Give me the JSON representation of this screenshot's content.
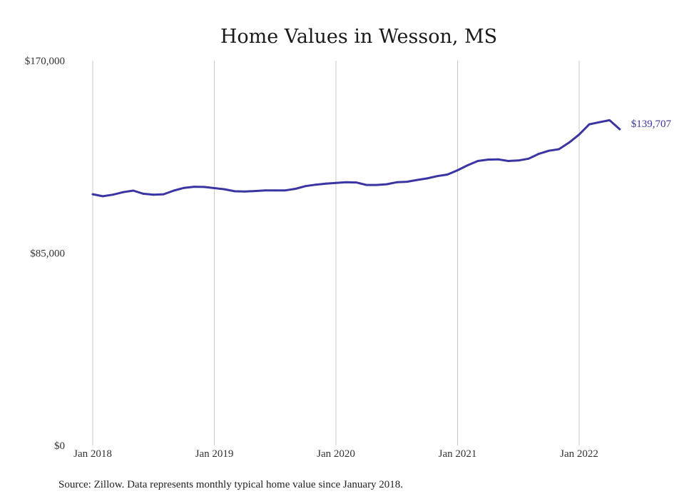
{
  "chart_data": {
    "type": "line",
    "title": "Home Values in Wesson, MS",
    "xlabel": "",
    "ylabel": "",
    "ylim": [
      0,
      170000
    ],
    "y_ticks": [
      {
        "value": 0,
        "label": "$0"
      },
      {
        "value": 85000,
        "label": "$85,000"
      },
      {
        "value": 170000,
        "label": "$170,000"
      }
    ],
    "x_ticks": [
      {
        "value": "2018-01",
        "label": "Jan 2018"
      },
      {
        "value": "2019-01",
        "label": "Jan 2019"
      },
      {
        "value": "2020-01",
        "label": "Jan 2020"
      },
      {
        "value": "2021-01",
        "label": "Jan 2021"
      },
      {
        "value": "2022-01",
        "label": "Jan 2022"
      }
    ],
    "grid": {
      "vertical": true,
      "horizontal": false
    },
    "line_color": "#3b34a3",
    "series": [
      {
        "x": [
          "2018-01",
          "2018-02",
          "2018-03",
          "2018-04",
          "2018-05",
          "2018-06",
          "2018-07",
          "2018-08",
          "2018-09",
          "2018-10",
          "2018-11",
          "2018-12",
          "2019-01",
          "2019-02",
          "2019-03",
          "2019-04",
          "2019-05",
          "2019-06",
          "2019-07",
          "2019-08",
          "2019-09",
          "2019-10",
          "2019-11",
          "2019-12",
          "2020-01",
          "2020-02",
          "2020-03",
          "2020-04",
          "2020-05",
          "2020-06",
          "2020-07",
          "2020-08",
          "2020-09",
          "2020-10",
          "2020-11",
          "2020-12",
          "2021-01",
          "2021-02",
          "2021-03",
          "2021-04",
          "2021-05",
          "2021-06",
          "2021-07",
          "2021-08",
          "2021-09",
          "2021-10",
          "2021-11",
          "2021-12",
          "2022-01",
          "2022-02",
          "2022-03",
          "2022-04",
          "2022-05"
        ],
        "values": [
          111000,
          110100,
          110800,
          111900,
          112600,
          111200,
          110800,
          111000,
          112600,
          113800,
          114300,
          114200,
          113700,
          113200,
          112300,
          112200,
          112400,
          112700,
          112700,
          112700,
          113400,
          114600,
          115200,
          115700,
          116000,
          116300,
          116200,
          115100,
          115100,
          115400,
          116300,
          116500,
          117300,
          118000,
          119000,
          119700,
          121600,
          123800,
          125700,
          126300,
          126400,
          125700,
          125900,
          126700,
          128800,
          130200,
          130900,
          133800,
          137400,
          141900,
          142800,
          143700,
          139707
        ]
      }
    ],
    "end_label": "$139,707",
    "source_text": "Source: Zillow. Data represents monthly typical home value since January 2018."
  }
}
